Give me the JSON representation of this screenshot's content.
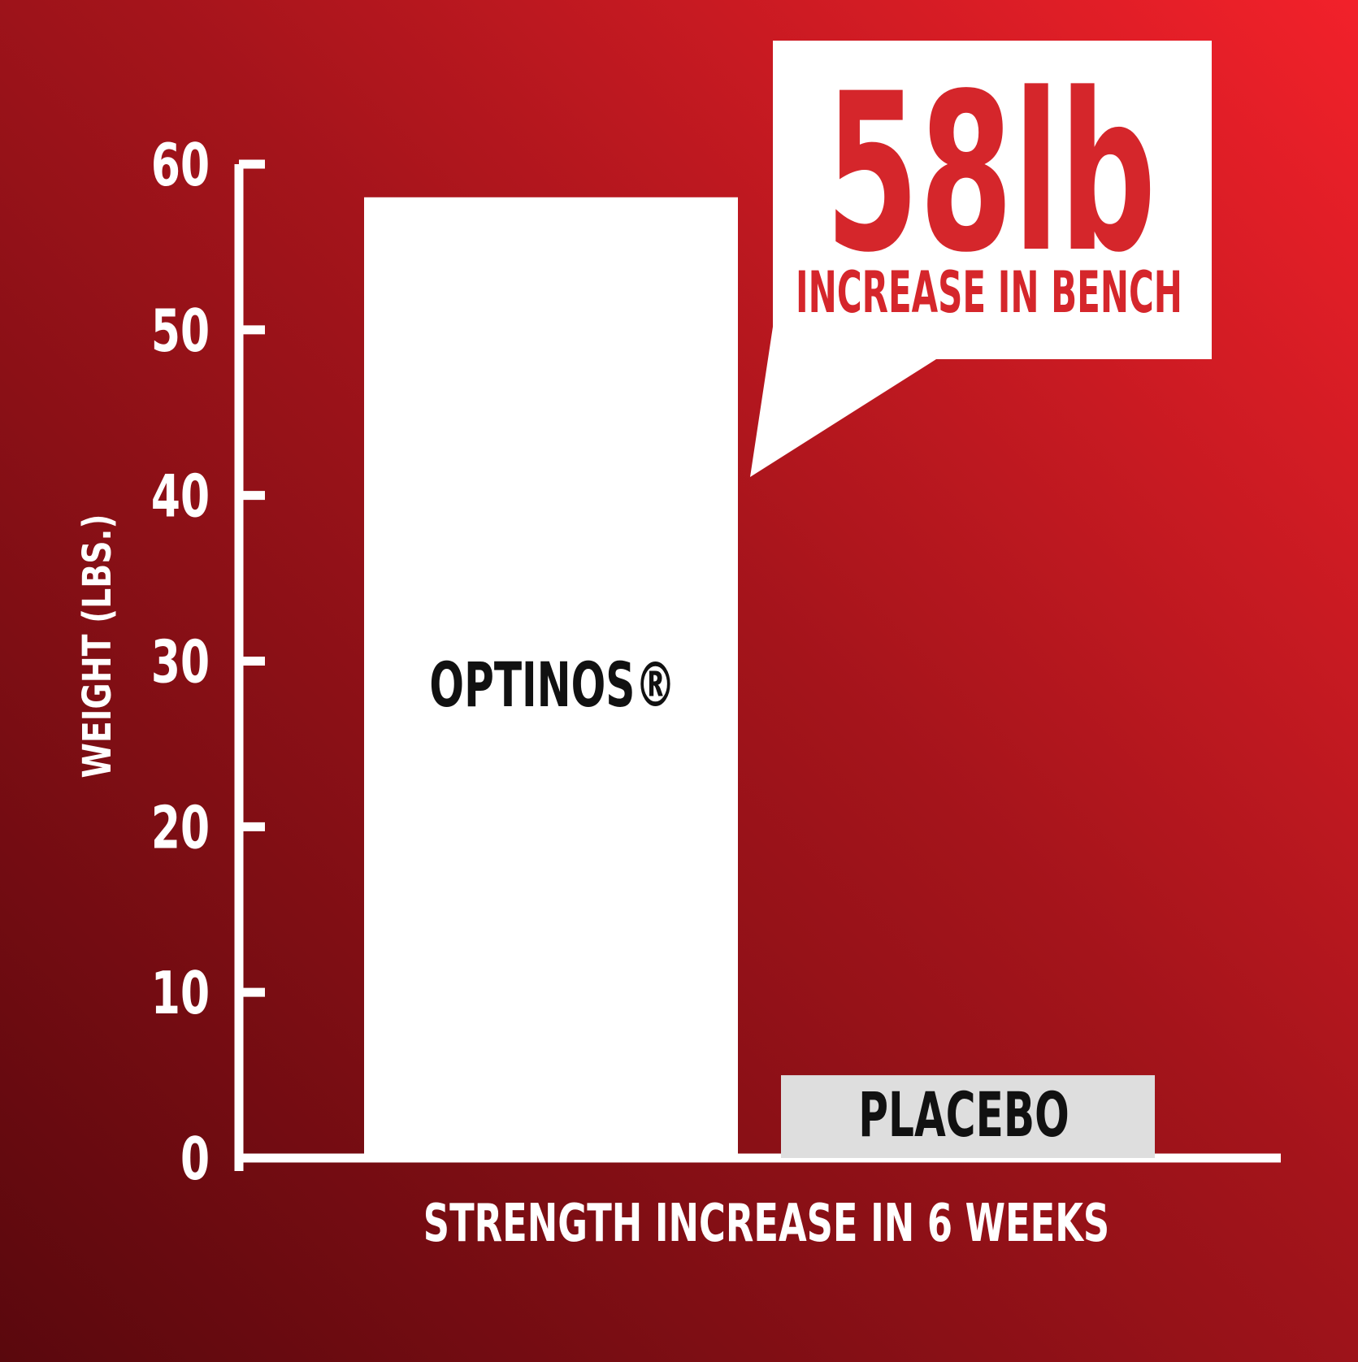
{
  "chart_data": {
    "type": "bar",
    "categories": [
      "OPTINOS®",
      "PLACEBO"
    ],
    "values": [
      58,
      5
    ],
    "ylabel": "WEIGHT (LBS.)",
    "xlabel": "STRENGTH INCREASE IN 6 WEEKS",
    "ylim": [
      0,
      60
    ],
    "yticks": [
      0,
      10,
      20,
      30,
      40,
      50,
      60
    ],
    "grid": false,
    "callout": {
      "value": "58lb",
      "text": "INCREASE IN BENCH"
    },
    "colors": {
      "background_light": "#f2212a",
      "background_dark": "#5a080d",
      "axis": "#ffffff",
      "bar_optinos": "#ffffff",
      "bar_placebo": "#dedede",
      "bar_label": "#111111",
      "callout_bg": "#ffffff",
      "callout_text": "#d5262b"
    }
  }
}
